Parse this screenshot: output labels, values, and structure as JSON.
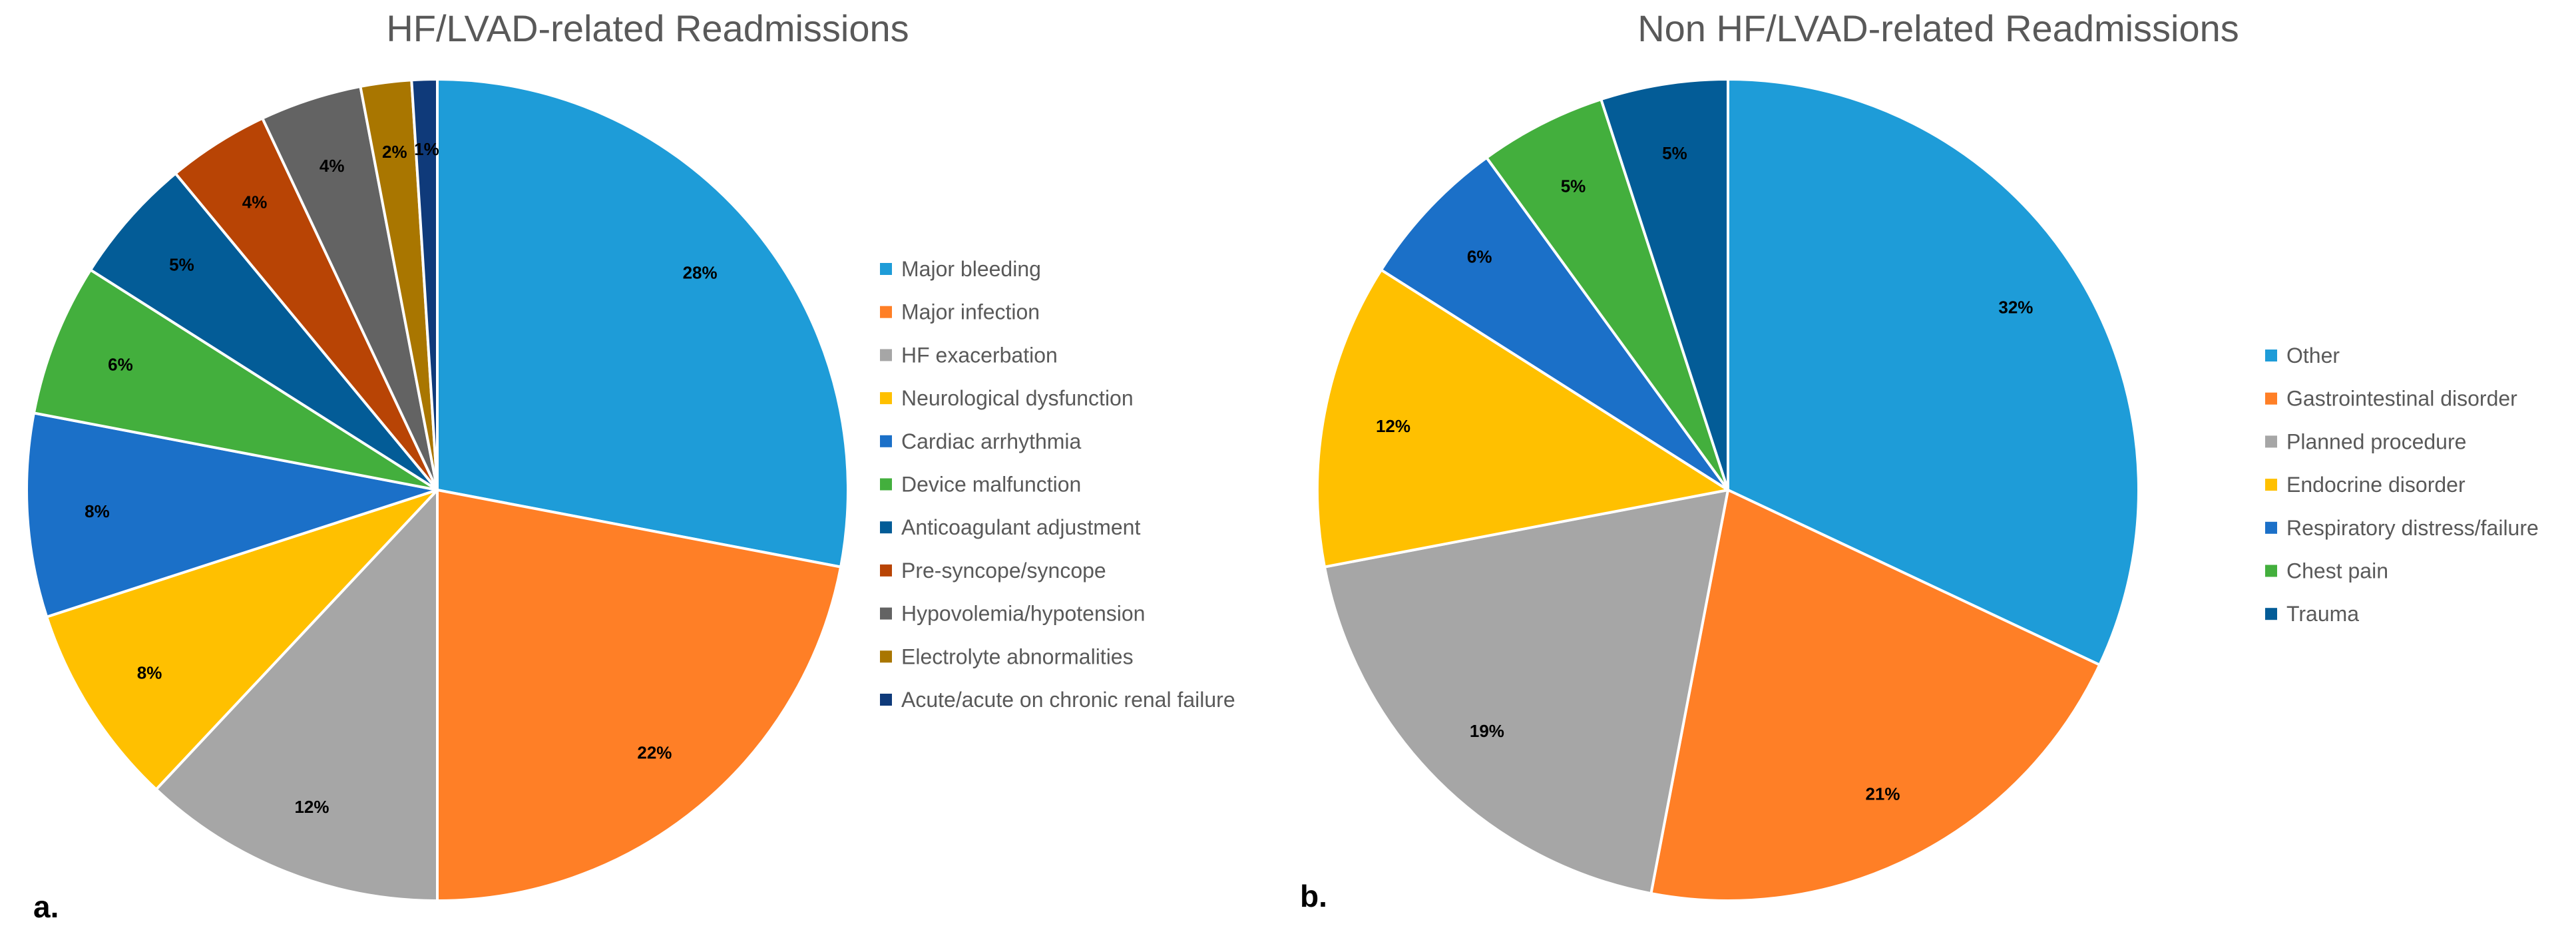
{
  "chart_data": [
    {
      "type": "pie",
      "title": "HF/LVAD-related Readmissions",
      "panel_label": "a.",
      "legend_position": "right",
      "slices": [
        {
          "label": "Major bleeding",
          "value": 28,
          "value_label": "28%",
          "color": "#1E9CD8"
        },
        {
          "label": "Major infection",
          "value": 22,
          "value_label": "22%",
          "color": "#FF7F26"
        },
        {
          "label": "HF exacerbation",
          "value": 12,
          "value_label": "12%",
          "color": "#A6A6A6"
        },
        {
          "label": "Neurological dysfunction",
          "value": 8,
          "value_label": "8%",
          "color": "#FFC000"
        },
        {
          "label": "Cardiac arrhythmia",
          "value": 8,
          "value_label": "8%",
          "color": "#1B70C8"
        },
        {
          "label": "Device malfunction",
          "value": 6,
          "value_label": "6%",
          "color": "#43AF3D"
        },
        {
          "label": "Anticoagulant adjustment",
          "value": 5,
          "value_label": "5%",
          "color": "#035C97"
        },
        {
          "label": "Pre-syncope/syncope",
          "value": 4,
          "value_label": "4%",
          "color": "#B84405"
        },
        {
          "label": "Hypovolemia/hypotension",
          "value": 4,
          "value_label": "4%",
          "color": "#636363"
        },
        {
          "label": "Electrolyte abnormalities",
          "value": 2,
          "value_label": "2%",
          "color": "#A97600"
        },
        {
          "label": "Acute/acute on chronic renal failure",
          "value": 1,
          "value_label": "1%",
          "color": "#0F3A7A"
        }
      ]
    },
    {
      "type": "pie",
      "title": "Non HF/LVAD-related Readmissions",
      "panel_label": "b.",
      "legend_position": "right",
      "slices": [
        {
          "label": "Other",
          "value": 32,
          "value_label": "32%",
          "color": "#1E9CD8"
        },
        {
          "label": "Gastrointestinal disorder",
          "value": 21,
          "value_label": "21%",
          "color": "#FF7F26"
        },
        {
          "label": "Planned procedure",
          "value": 19,
          "value_label": "19%",
          "color": "#A6A6A6"
        },
        {
          "label": "Endocrine disorder",
          "value": 12,
          "value_label": "12%",
          "color": "#FFC000"
        },
        {
          "label": "Respiratory distress/failure",
          "value": 6,
          "value_label": "6%",
          "color": "#1B70C8"
        },
        {
          "label": "Chest pain",
          "value": 5,
          "value_label": "5%",
          "color": "#43AF3D"
        },
        {
          "label": "Trauma",
          "value": 5,
          "value_label": "5%",
          "color": "#035C97"
        }
      ]
    }
  ]
}
